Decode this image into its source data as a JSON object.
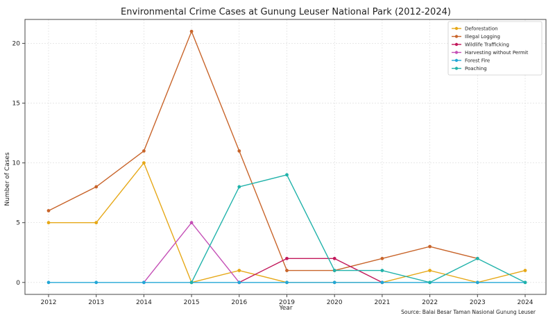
{
  "chart_data": {
    "type": "line",
    "title": "Environmental Crime Cases at Gunung Leuser National Park (2012-2024)",
    "xlabel": "Year",
    "ylabel": "Number of Cases",
    "source": "Source: Balai Besar Taman Nasional Gunung Leuser",
    "categories": [
      "2012",
      "2013",
      "2014",
      "2015",
      "2016",
      "2019",
      "2020",
      "2021",
      "2022",
      "2023",
      "2024"
    ],
    "ylim": [
      -1,
      22
    ],
    "yticks": [
      0,
      5,
      10,
      15,
      20
    ],
    "grid": true,
    "legend_position": "top-right",
    "series": [
      {
        "name": "Deforestation",
        "color": "#E6A817",
        "values": [
          5,
          5,
          10,
          0,
          1,
          0,
          0,
          0,
          1,
          0,
          1
        ]
      },
      {
        "name": "Illegal Logging",
        "color": "#C8642A",
        "values": [
          6,
          8,
          11,
          21,
          11,
          1,
          1,
          2,
          3,
          2,
          null
        ]
      },
      {
        "name": "Wildlife Trafficking",
        "color": "#C2185B",
        "values": [
          null,
          null,
          null,
          null,
          0,
          2,
          2,
          0,
          null,
          null,
          null
        ]
      },
      {
        "name": "Harvesting without Permit",
        "color": "#C44FB6",
        "values": [
          null,
          null,
          0,
          5,
          0,
          null,
          null,
          null,
          null,
          null,
          null
        ]
      },
      {
        "name": "Forest Fire",
        "color": "#22A7D6",
        "values": [
          0,
          0,
          0,
          0,
          0,
          0,
          0,
          0,
          0,
          0,
          0
        ]
      },
      {
        "name": "Poaching",
        "color": "#20B2AA",
        "values": [
          null,
          null,
          null,
          0,
          8,
          9,
          1,
          1,
          0,
          2,
          0
        ]
      }
    ]
  }
}
